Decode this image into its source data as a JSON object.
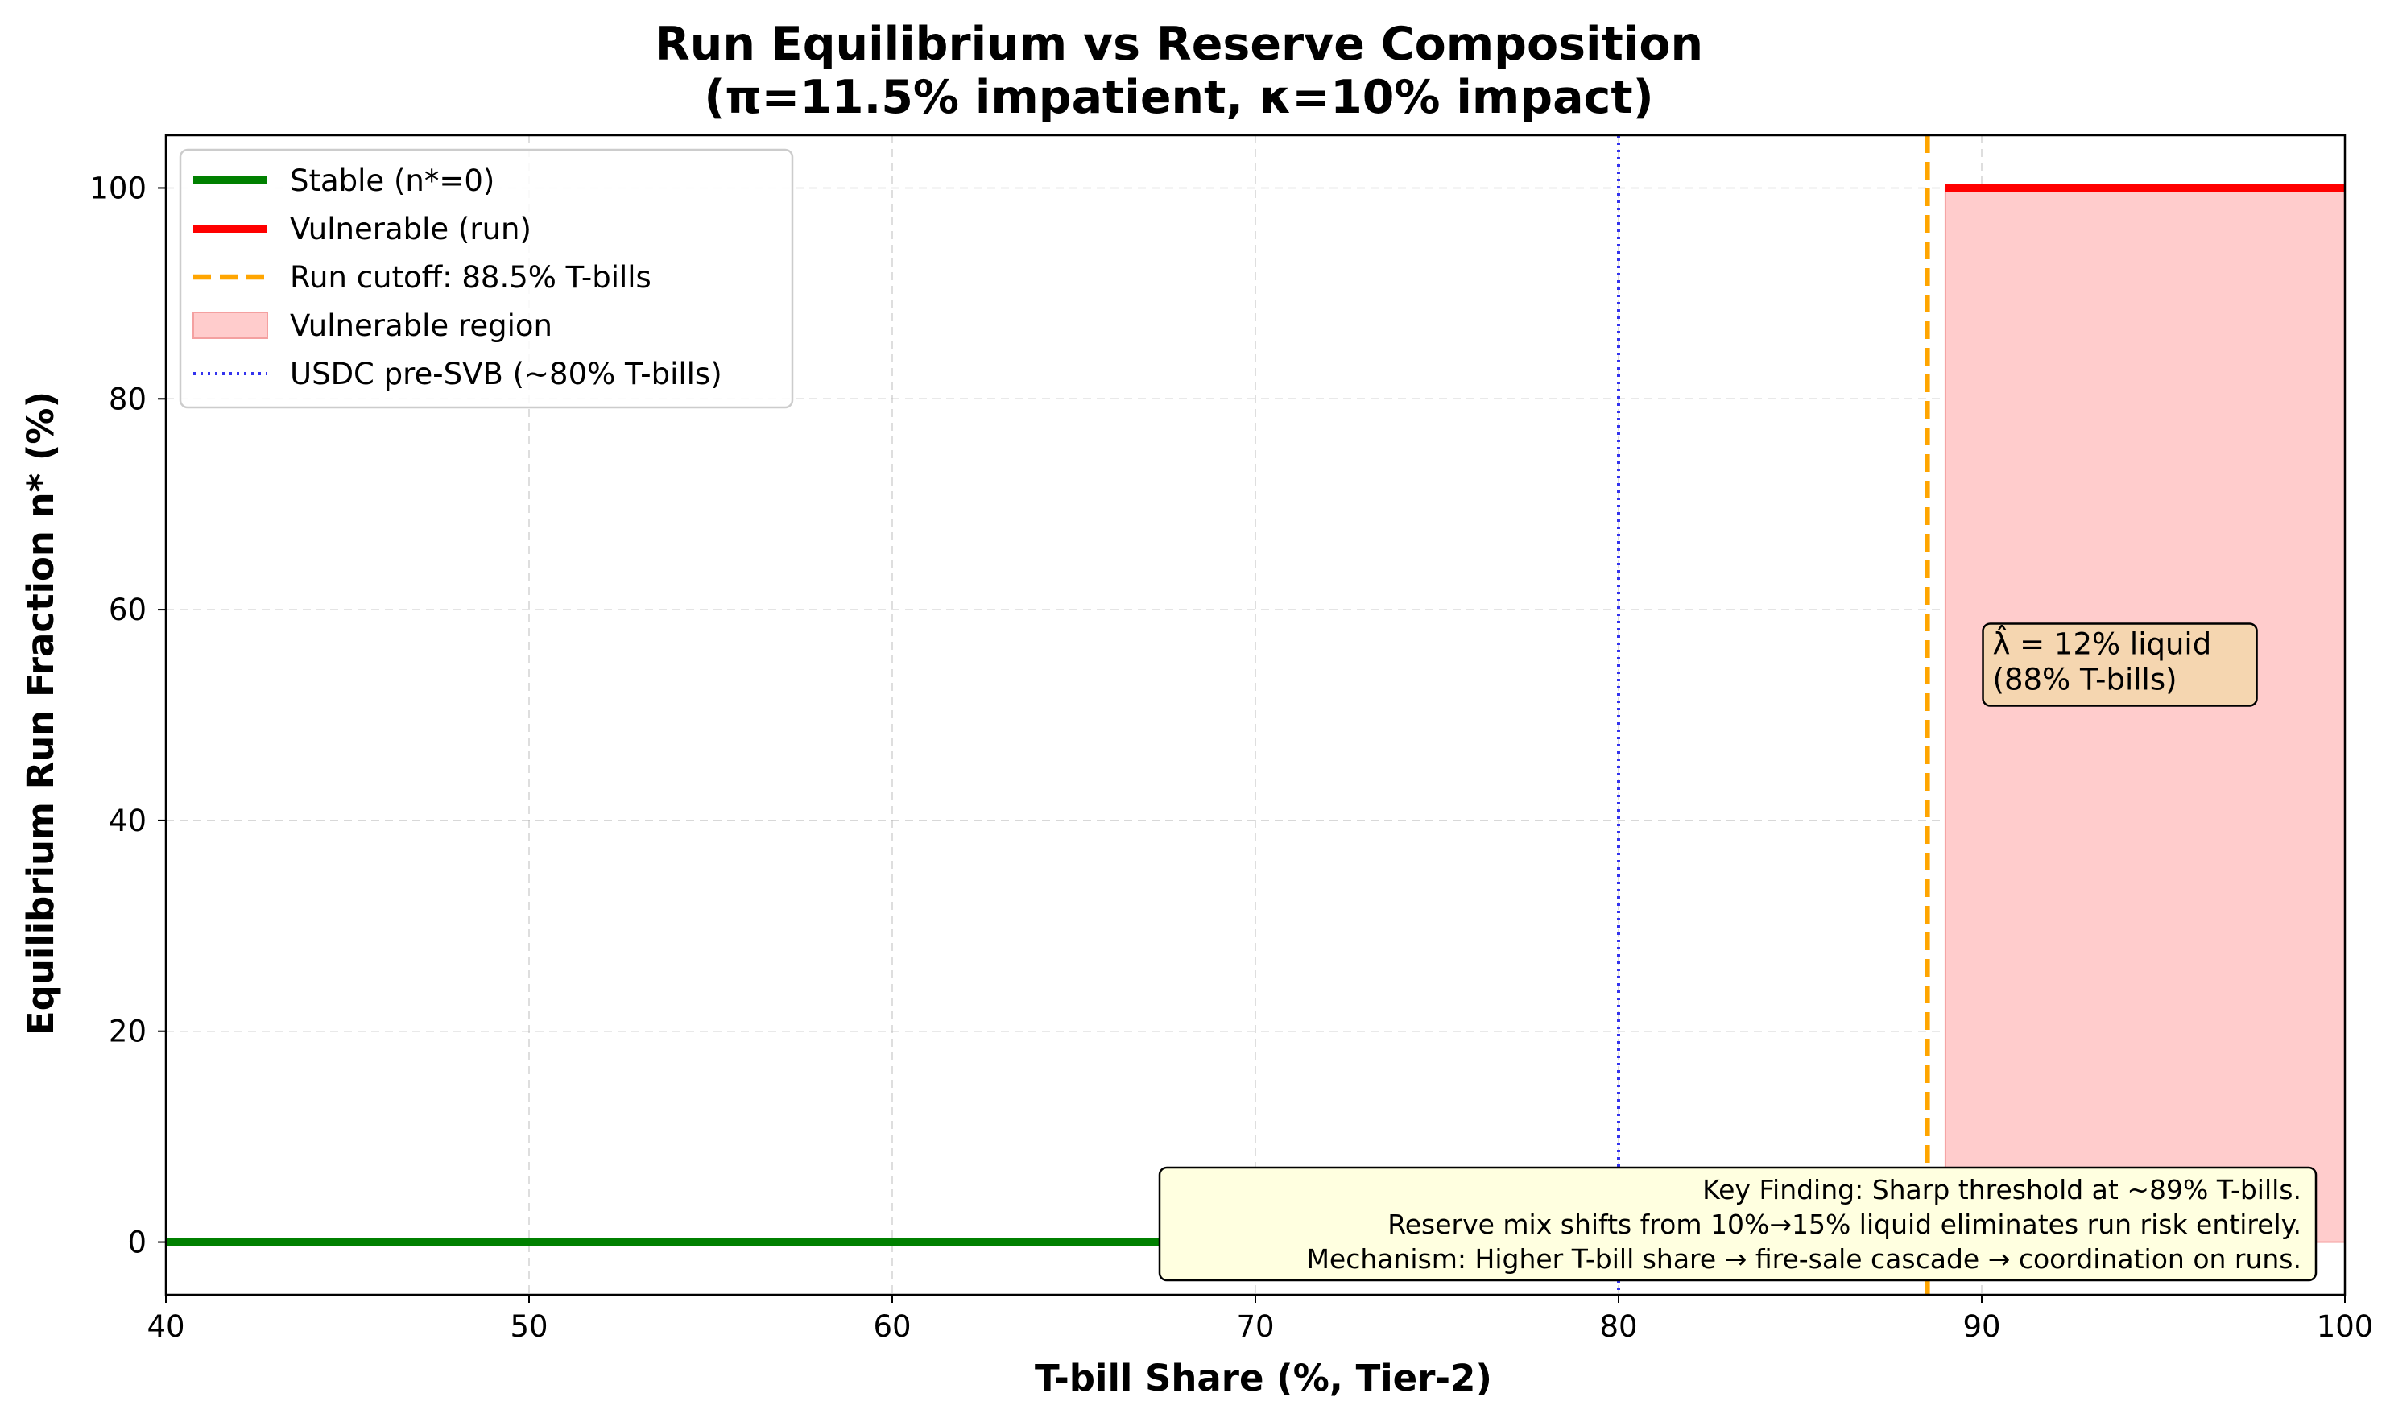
{
  "chart_data": {
    "type": "line",
    "title_line1": "Run Equilibrium vs Reserve Composition",
    "title_line2": "(π=11.5% impatient, κ=10% impact)",
    "xlabel": "T-bill Share (%, Tier-2)",
    "ylabel": "Equilibrium Run Fraction n* (%)",
    "xlim": [
      40,
      100
    ],
    "ylim": [
      -5,
      105
    ],
    "x_ticks": [
      40,
      50,
      60,
      70,
      80,
      90,
      100
    ],
    "y_ticks": [
      0,
      20,
      40,
      60,
      80,
      100
    ],
    "grid": true,
    "legend_position": "upper left",
    "series": [
      {
        "name": "Stable (n*=0)",
        "color": "#008000",
        "x": [
          40,
          88.5
        ],
        "y": [
          0,
          0
        ]
      },
      {
        "name": "Vulnerable (run)",
        "color": "#ff0000",
        "x": [
          89,
          100
        ],
        "y": [
          100,
          100
        ]
      }
    ],
    "cutoff_line": {
      "name": "Run cutoff: 88.5% T-bills",
      "x": 88.5,
      "color": "#ffa500"
    },
    "region": {
      "name": "Vulnerable region",
      "x_start": 89,
      "x_end": 100,
      "y_from": 0,
      "y_to": 100,
      "color": "#ffcccc"
    },
    "reference_line": {
      "name": "USDC pre-SVB (~80% T-bills)",
      "x": 80,
      "color": "#3333ee"
    },
    "annotation": {
      "lines": [
        "λ̂ = 12% liquid",
        "(88% T-bills)"
      ],
      "x": 90.3,
      "y": 55,
      "bg": "#f5d6b0"
    },
    "finding": {
      "lines": [
        "Key Finding: Sharp threshold at ~89% T-bills.",
        "Reserve mix shifts from 10%→15% liquid eliminates run risk entirely.",
        "Mechanism: Higher T-bill share → fire-sale cascade → coordination on runs."
      ],
      "bg": "#ffffe0"
    }
  }
}
